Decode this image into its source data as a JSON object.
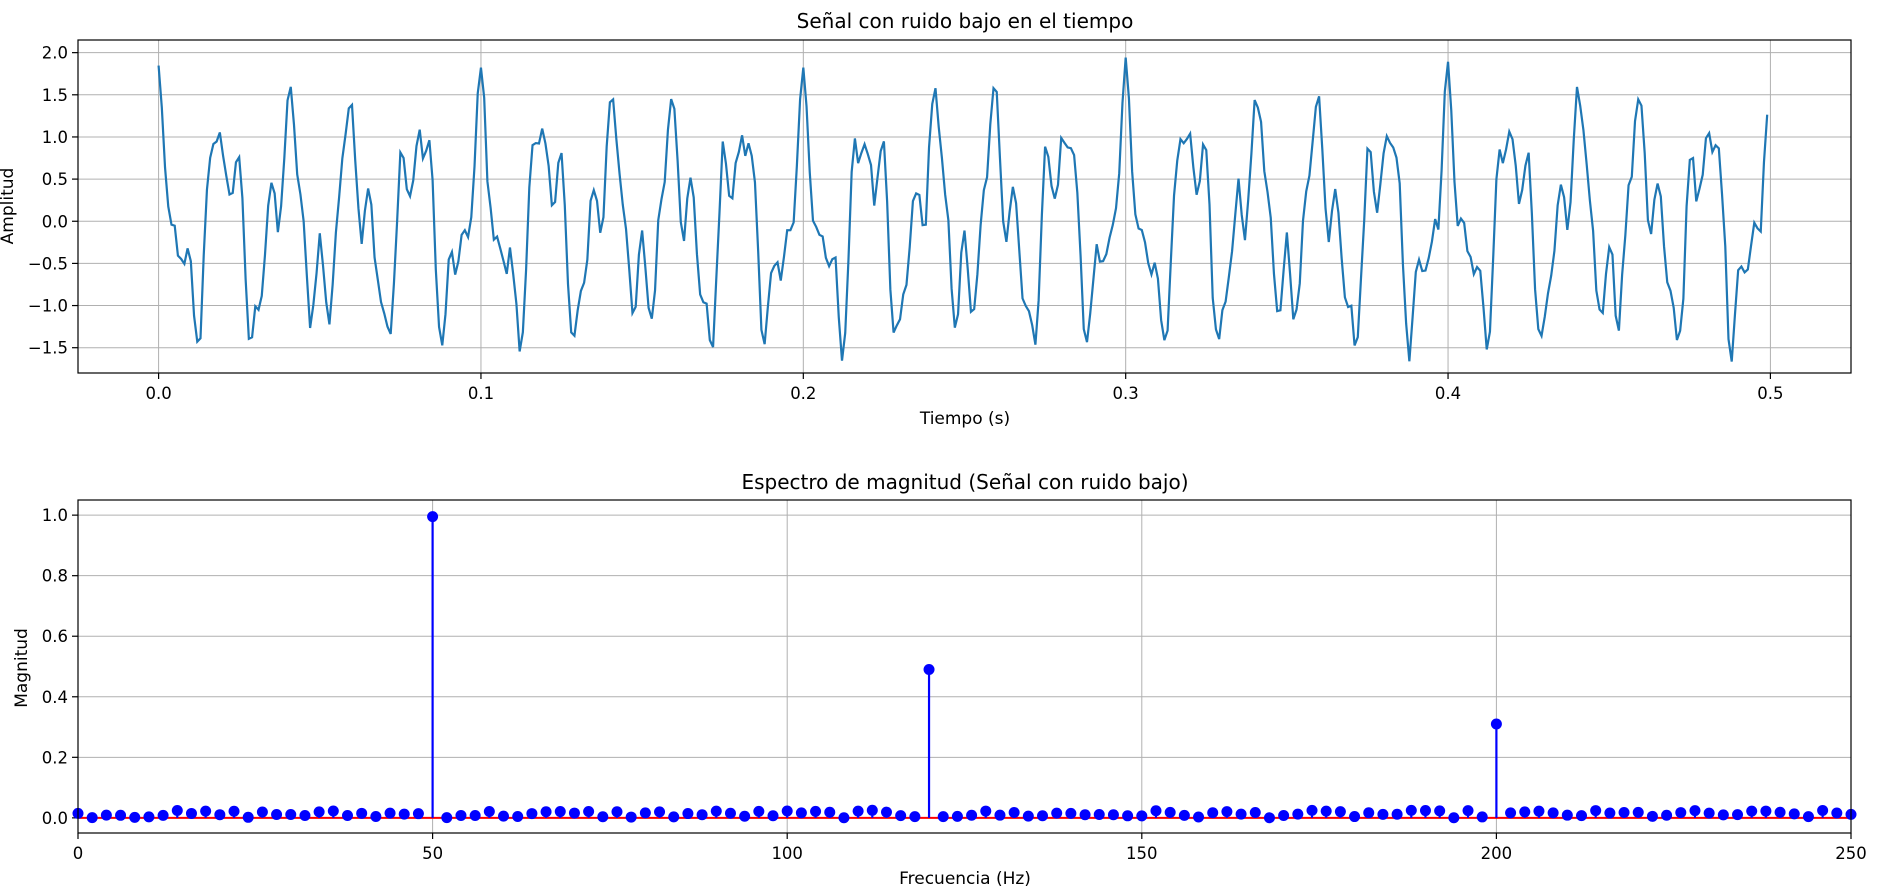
{
  "chart_data": [
    {
      "type": "line",
      "title": "Señal con ruido bajo en el tiempo",
      "xlabel": "Tiempo (s)",
      "ylabel": "Amplitud",
      "xlim": [
        -0.025,
        0.525
      ],
      "ylim": [
        -1.8,
        2.15
      ],
      "xticks": [
        0.0,
        0.1,
        0.2,
        0.3,
        0.4,
        0.5
      ],
      "xtick_labels": [
        "0.0",
        "0.1",
        "0.2",
        "0.3",
        "0.4",
        "0.5"
      ],
      "yticks": [
        -1.5,
        -1.0,
        -0.5,
        0.0,
        0.5,
        1.0,
        1.5,
        2.0
      ],
      "ytick_labels": [
        "−1.5",
        "−1.0",
        "−0.5",
        "0.0",
        "0.5",
        "1.0",
        "1.5",
        "2.0"
      ],
      "grid": true,
      "line_color": "#1f77b4",
      "series": [
        {
          "x_start": 0.0,
          "x_step": 0.001,
          "components": [
            {
              "freq_hz": 50,
              "amplitude": 1.0
            },
            {
              "freq_hz": 120,
              "amplitude": 0.5
            },
            {
              "freq_hz": 200,
              "amplitude": 0.3
            }
          ],
          "noise_amplitude": 0.15,
          "n_points": 500
        }
      ]
    },
    {
      "type": "stem",
      "title": "Espectro de magnitud (Señal con ruido bajo)",
      "xlabel": "Frecuencia (Hz)",
      "ylabel": "Magnitud",
      "xlim": [
        0,
        250
      ],
      "ylim": [
        -0.05,
        1.05
      ],
      "xticks": [
        0,
        50,
        100,
        150,
        200,
        250
      ],
      "xtick_labels": [
        "0",
        "50",
        "100",
        "150",
        "200",
        "250"
      ],
      "yticks": [
        0.0,
        0.2,
        0.4,
        0.6,
        0.8,
        1.0
      ],
      "ytick_labels": [
        "0.0",
        "0.2",
        "0.4",
        "0.6",
        "0.8",
        "1.0"
      ],
      "grid": true,
      "stem_color": "#0000ff",
      "baseline_color": "#ff0000",
      "freq_step_hz": 2,
      "peaks": [
        {
          "freq_hz": 50,
          "magnitude": 0.995
        },
        {
          "freq_hz": 120,
          "magnitude": 0.49
        },
        {
          "freq_hz": 200,
          "magnitude": 0.31
        }
      ],
      "noise_floor_max": 0.025
    }
  ]
}
